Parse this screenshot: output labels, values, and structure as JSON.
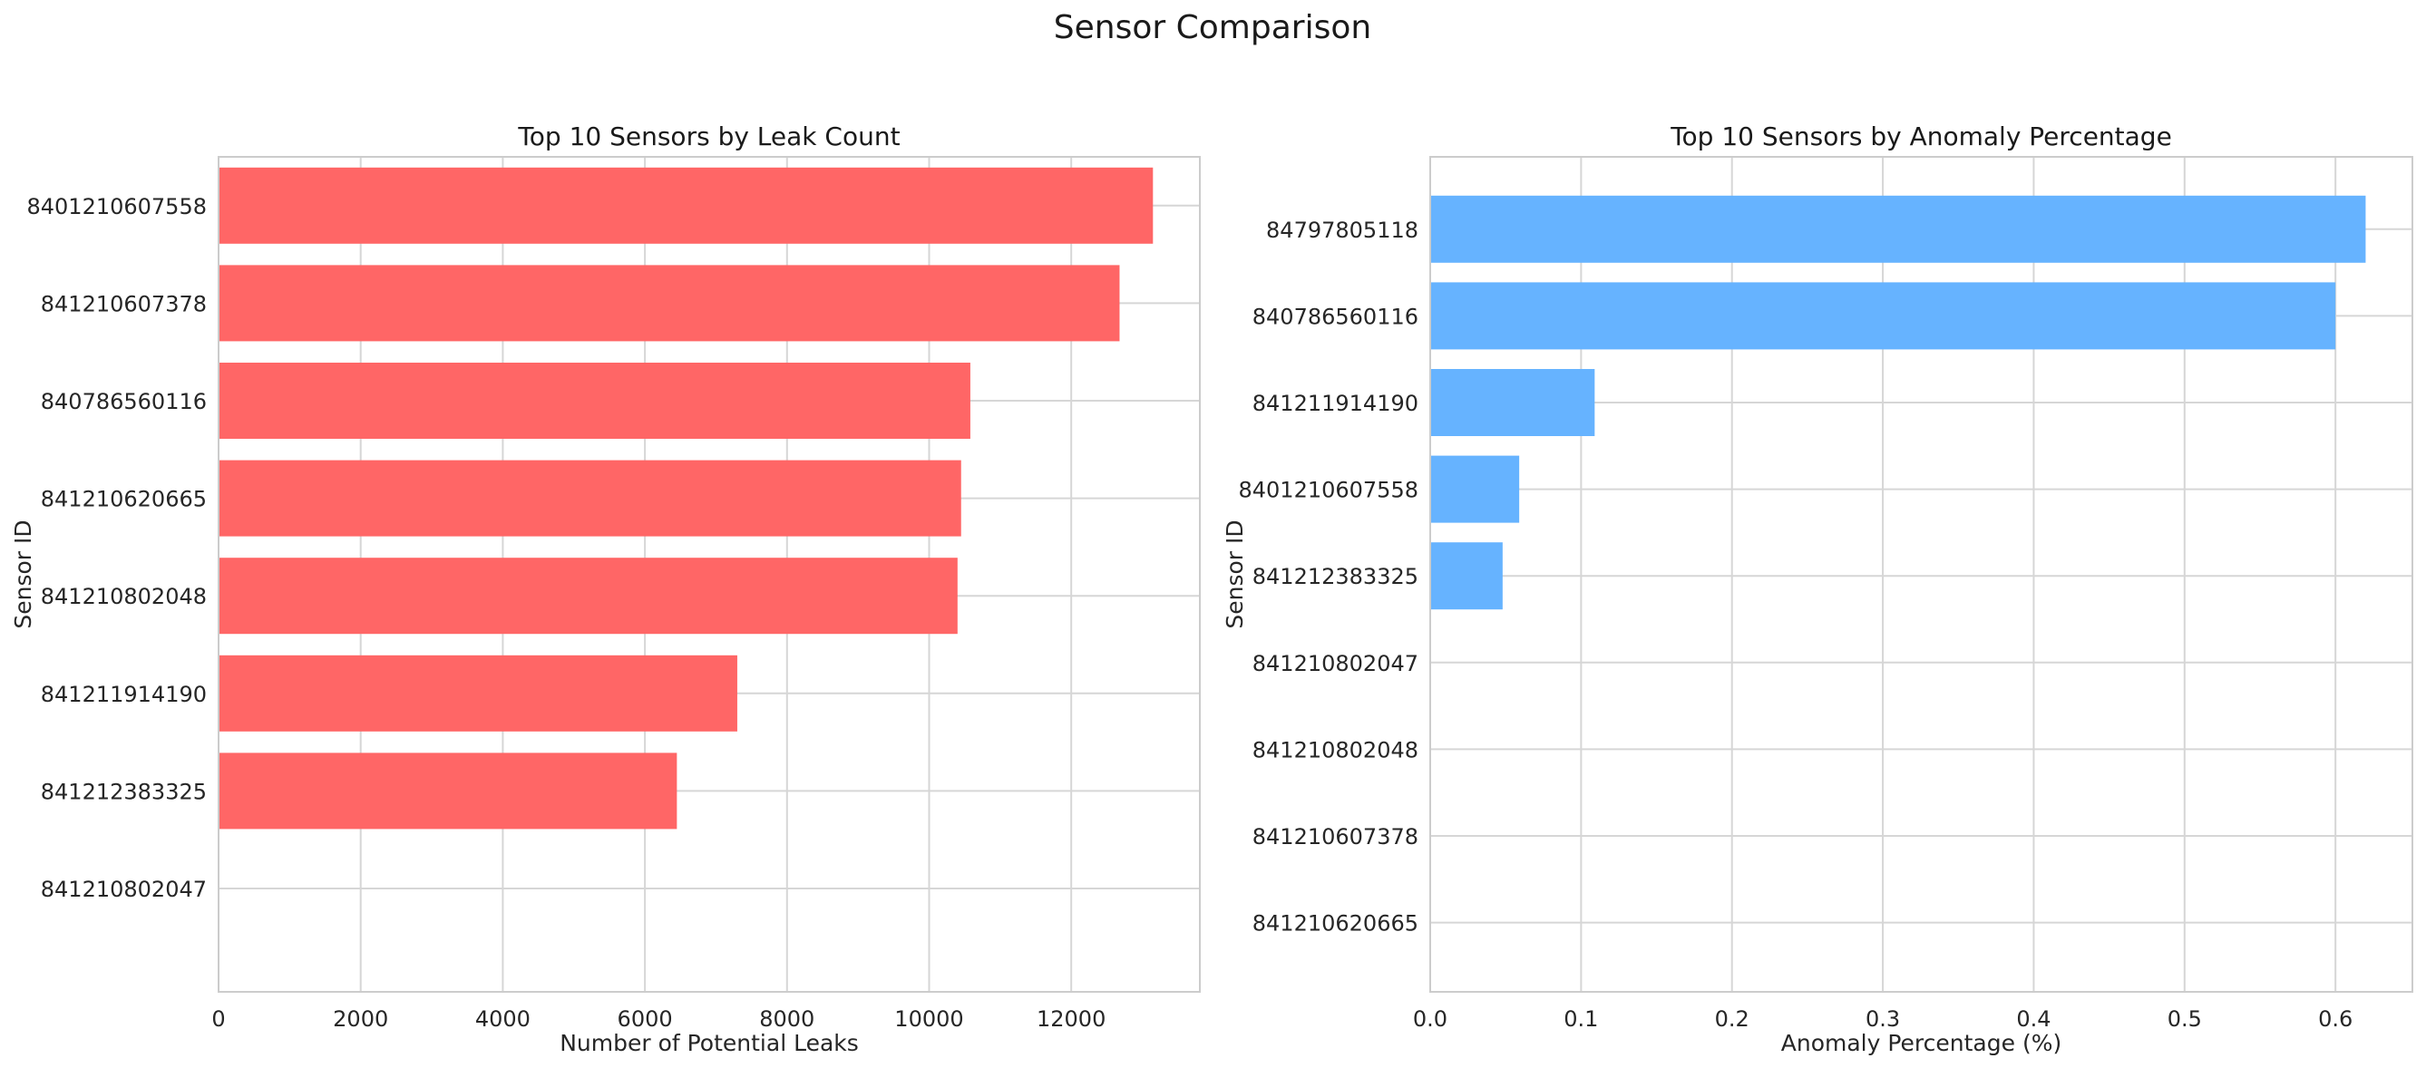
{
  "figure_title": "Sensor Comparison",
  "chart_data": [
    {
      "type": "bar",
      "orientation": "horizontal",
      "title": "Top 10 Sensors by Leak Count",
      "xlabel": "Number of Potential Leaks",
      "ylabel": "Sensor ID",
      "categories": [
        "8401210607558",
        "841210607378",
        "840786560116",
        "841210620665",
        "841210802048",
        "841211914190",
        "841212383325",
        "841210802047"
      ],
      "values": [
        13150,
        12680,
        10580,
        10450,
        10400,
        7300,
        6450,
        0
      ],
      "xlim": [
        0,
        13810
      ],
      "xticks": [
        0,
        2000,
        4000,
        6000,
        8000,
        10000,
        12000
      ],
      "xtick_labels": [
        "0",
        "2000",
        "4000",
        "6000",
        "8000",
        "10000",
        "12000"
      ],
      "bar_color": "#ff6666",
      "grid": true
    },
    {
      "type": "bar",
      "orientation": "horizontal",
      "title": "Top 10 Sensors by Anomaly Percentage",
      "xlabel": "Anomaly Percentage (%)",
      "ylabel": "Sensor ID",
      "categories": [
        "84797805118",
        "840786560116",
        "841211914190",
        "8401210607558",
        "841212383325",
        "841210802047",
        "841210802048",
        "841210607378",
        "841210620665"
      ],
      "values": [
        0.62,
        0.6,
        0.109,
        0.059,
        0.048,
        0,
        0,
        0,
        0
      ],
      "xlim": [
        0,
        0.651
      ],
      "xticks": [
        0,
        0.1,
        0.2,
        0.3,
        0.4,
        0.5,
        0.6
      ],
      "xtick_labels": [
        "0.0",
        "0.1",
        "0.2",
        "0.3",
        "0.4",
        "0.5",
        "0.6"
      ],
      "bar_color": "#66b3ff",
      "grid": true
    }
  ]
}
